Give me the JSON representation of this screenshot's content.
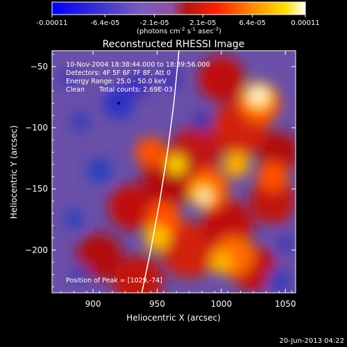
{
  "colorbar": {
    "tick_labels": [
      "-0.00011",
      "-6.4e-05",
      "-2.1e-05",
      "2.1e-05",
      "6.4e-05",
      "0.00011"
    ],
    "tick_values": [
      -0.00011,
      -6.4e-05,
      -2.1e-05,
      2.1e-05,
      6.4e-05,
      0.00011
    ],
    "range": [
      -0.00011,
      0.00011
    ],
    "units_main": "(photons cm",
    "units_exp1": "-2",
    "units_mid": " s",
    "units_exp2": "-1",
    "units_end": " asec",
    "units_exp3": "-2",
    "units_close": ")"
  },
  "chart_data": {
    "type": "heatmap",
    "title": "Reconstructed RHESSI Image",
    "xlabel": "Heliocentric X (arcsec)",
    "ylabel": "Heliocentric Y (arcsec)",
    "xlim": [
      868,
      1058
    ],
    "ylim": [
      -235,
      -37
    ],
    "x_ticks": [
      900,
      950,
      1000,
      1050
    ],
    "y_ticks": [
      -200,
      -150,
      -100,
      -50
    ],
    "annotations": {
      "time": "10-Nov-2004 18:38:44.000 to 18:39:56.000",
      "detectors": "Detectors: 4F 5F 6F 7F 8F, Att 0",
      "energy": "Energy Range: 25.0 - 50.0 keV",
      "clean": "Clean",
      "counts": "Total counts: 2.69E-03",
      "peak": "Position of Peak = [1029,-74]"
    },
    "limb_curve": [
      [
        938,
        -235
      ],
      [
        945,
        -200
      ],
      [
        952,
        -160
      ],
      [
        958,
        -120
      ],
      [
        963,
        -80
      ],
      [
        967,
        -37
      ]
    ],
    "marker": [
      920,
      -80
    ],
    "colormap": "blue-purple-red-yellow-white",
    "grid": false
  },
  "footer": {
    "date": "20-Jun-2013 04:22"
  }
}
